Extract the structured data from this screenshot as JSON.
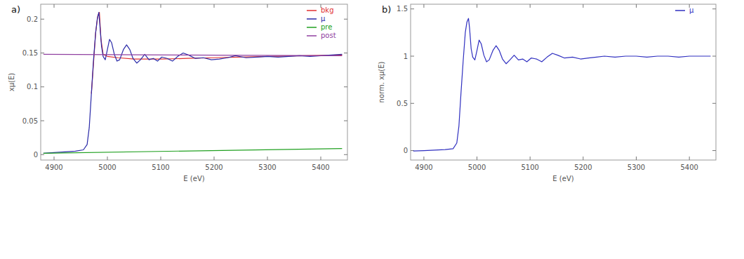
{
  "chart_data": [
    {
      "type": "line",
      "title": "a)",
      "x_label": "E (eV)",
      "y_label": "xμ(E)",
      "xlim": [
        4875,
        5450
      ],
      "ylim": [
        -0.008,
        0.222
      ],
      "xticks": [
        4900,
        5000,
        5100,
        5200,
        5300,
        5400
      ],
      "yticks": [
        0,
        0.05,
        0.1,
        0.15,
        0.2
      ],
      "legend": "upper right",
      "grid": false,
      "series": [
        {
          "name": "bkg",
          "color": "#e03030",
          "x": [
            4970,
            4978,
            4982,
            4985,
            4988,
            4992,
            5000,
            5020,
            5050,
            5100,
            5150,
            5200,
            5300,
            5440
          ],
          "values": [
            0.09,
            0.18,
            0.205,
            0.21,
            0.17,
            0.148,
            0.145,
            0.143,
            0.141,
            0.141,
            0.142,
            0.143,
            0.145,
            0.147
          ]
        },
        {
          "name": "μ",
          "color": "#2a2aa8",
          "x": [
            4880,
            4900,
            4920,
            4940,
            4955,
            4962,
            4966,
            4970,
            4974,
            4978,
            4981,
            4984,
            4986,
            4989,
            4992,
            4996,
            5000,
            5004,
            5008,
            5013,
            5018,
            5023,
            5030,
            5036,
            5042,
            5048,
            5055,
            5062,
            5070,
            5078,
            5086,
            5094,
            5102,
            5112,
            5122,
            5132,
            5142,
            5152,
            5165,
            5180,
            5195,
            5210,
            5225,
            5240,
            5260,
            5280,
            5300,
            5320,
            5340,
            5360,
            5380,
            5400,
            5420,
            5440
          ],
          "values": [
            0.002,
            0.003,
            0.004,
            0.005,
            0.007,
            0.015,
            0.04,
            0.09,
            0.14,
            0.18,
            0.2,
            0.21,
            0.19,
            0.16,
            0.145,
            0.14,
            0.155,
            0.17,
            0.165,
            0.148,
            0.138,
            0.14,
            0.155,
            0.162,
            0.155,
            0.142,
            0.135,
            0.14,
            0.148,
            0.14,
            0.142,
            0.138,
            0.144,
            0.142,
            0.138,
            0.145,
            0.15,
            0.147,
            0.142,
            0.143,
            0.14,
            0.141,
            0.143,
            0.146,
            0.143,
            0.144,
            0.145,
            0.144,
            0.145,
            0.146,
            0.145,
            0.146,
            0.147,
            0.148
          ]
        },
        {
          "name": "pre",
          "color": "#20a020",
          "x": [
            4880,
            5440
          ],
          "values": [
            0.002,
            0.009
          ]
        },
        {
          "name": "post",
          "color": "#9040a0",
          "x": [
            4880,
            5440
          ],
          "values": [
            0.148,
            0.146
          ]
        }
      ]
    },
    {
      "type": "line",
      "title": "b)",
      "x_label": "E (eV)",
      "y_label": "norm. xμ(E)",
      "xlim": [
        4875,
        5450
      ],
      "ylim": [
        -0.1,
        1.55
      ],
      "xticks": [
        4900,
        5000,
        5100,
        5200,
        5300,
        5400
      ],
      "yticks": [
        0,
        0.5,
        1,
        1.5
      ],
      "legend": "upper right",
      "grid": false,
      "series": [
        {
          "name": "μ",
          "color": "#3030c0",
          "x": [
            4880,
            4900,
            4920,
            4940,
            4955,
            4962,
            4966,
            4970,
            4974,
            4978,
            4981,
            4984,
            4986,
            4989,
            4992,
            4996,
            5000,
            5004,
            5008,
            5013,
            5018,
            5023,
            5030,
            5036,
            5042,
            5048,
            5055,
            5062,
            5070,
            5078,
            5086,
            5094,
            5102,
            5112,
            5122,
            5132,
            5142,
            5152,
            5165,
            5180,
            5195,
            5210,
            5225,
            5240,
            5260,
            5280,
            5300,
            5320,
            5340,
            5360,
            5380,
            5400,
            5420,
            5440
          ],
          "values": [
            -0.005,
            0,
            0.005,
            0.01,
            0.02,
            0.08,
            0.26,
            0.62,
            0.95,
            1.25,
            1.36,
            1.4,
            1.3,
            1.08,
            0.99,
            0.96,
            1.06,
            1.17,
            1.13,
            1.01,
            0.94,
            0.96,
            1.06,
            1.11,
            1.06,
            0.97,
            0.92,
            0.96,
            1.01,
            0.96,
            0.97,
            0.94,
            0.98,
            0.97,
            0.94,
            0.99,
            1.03,
            1.01,
            0.98,
            0.99,
            0.97,
            0.98,
            0.99,
            1.0,
            0.99,
            1.0,
            1.0,
            0.99,
            1.0,
            1.0,
            0.99,
            1.0,
            1.0,
            1.0
          ]
        }
      ]
    }
  ]
}
